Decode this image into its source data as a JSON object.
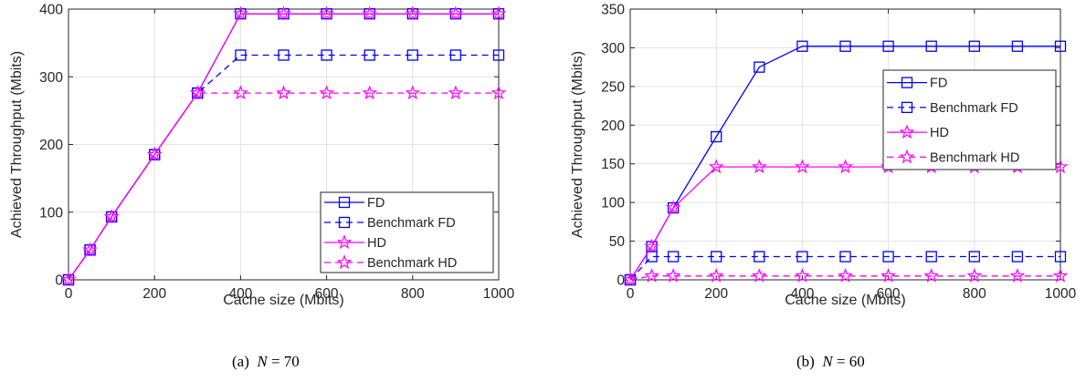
{
  "charts": [
    {
      "caption": {
        "prefix": "(a)",
        "var": "N",
        "rest": " = 70"
      },
      "chart_data": {
        "type": "line",
        "xlabel": "Cache size (Mbits)",
        "ylabel": "Achieved Throughput (Mbits)",
        "xlim": [
          0,
          1000
        ],
        "ylim": [
          0,
          400
        ],
        "xticks": [
          0,
          200,
          400,
          600,
          800,
          1000
        ],
        "yticks": [
          0,
          100,
          200,
          300,
          400
        ],
        "grid": true,
        "legend_position": "bottom-right",
        "series": [
          {
            "name": "FD",
            "color": "#0000ff",
            "marker": "square",
            "dashed": false,
            "x": [
              0,
              50,
              100,
              200,
              300,
              400,
              500,
              600,
              700,
              800,
              900,
              1000
            ],
            "y": [
              0,
              44,
              93,
              185,
              276,
              393,
              393,
              393,
              393,
              393,
              393,
              393
            ]
          },
          {
            "name": "Benchmark FD",
            "color": "#0000ff",
            "marker": "square",
            "dashed": true,
            "x": [
              0,
              50,
              100,
              200,
              300,
              400,
              500,
              600,
              700,
              800,
              900,
              1000
            ],
            "y": [
              0,
              44,
              93,
              185,
              276,
              332,
              332,
              332,
              332,
              332,
              332,
              332
            ]
          },
          {
            "name": "HD",
            "color": "#ff00ff",
            "marker": "star",
            "dashed": false,
            "x": [
              0,
              50,
              100,
              200,
              300,
              400,
              500,
              600,
              700,
              800,
              900,
              1000
            ],
            "y": [
              0,
              44,
              93,
              185,
              276,
              393,
              393,
              393,
              393,
              393,
              393,
              393
            ]
          },
          {
            "name": "Benchmark HD",
            "color": "#ff00ff",
            "marker": "star",
            "dashed": true,
            "x": [
              0,
              50,
              100,
              200,
              300,
              400,
              500,
              600,
              700,
              800,
              900,
              1000
            ],
            "y": [
              0,
              44,
              93,
              185,
              276,
              276,
              276,
              276,
              276,
              276,
              276,
              276
            ]
          }
        ]
      }
    },
    {
      "caption": {
        "prefix": "(b)",
        "var": "N",
        "rest": " = 60"
      },
      "chart_data": {
        "type": "line",
        "xlabel": "Cache size (Mbits)",
        "ylabel": "Achieved Throughput (Mbits)",
        "xlim": [
          0,
          1000
        ],
        "ylim": [
          0,
          350
        ],
        "xticks": [
          0,
          200,
          400,
          600,
          800,
          1000
        ],
        "yticks": [
          0,
          50,
          100,
          150,
          200,
          250,
          300,
          350
        ],
        "grid": true,
        "legend_position": "top-right",
        "series": [
          {
            "name": "FD",
            "color": "#0000ff",
            "marker": "square",
            "dashed": false,
            "x": [
              0,
              50,
              100,
              200,
              300,
              400,
              500,
              600,
              700,
              800,
              900,
              1000
            ],
            "y": [
              0,
              43,
              93,
              185,
              275,
              302,
              302,
              302,
              302,
              302,
              302,
              302
            ]
          },
          {
            "name": "Benchmark FD",
            "color": "#0000ff",
            "marker": "square",
            "dashed": true,
            "x": [
              0,
              50,
              100,
              200,
              300,
              400,
              500,
              600,
              700,
              800,
              900,
              1000
            ],
            "y": [
              0,
              30,
              30,
              30,
              30,
              30,
              30,
              30,
              30,
              30,
              30,
              30
            ]
          },
          {
            "name": "HD",
            "color": "#ff00ff",
            "marker": "star",
            "dashed": false,
            "x": [
              0,
              50,
              100,
              200,
              300,
              400,
              500,
              600,
              700,
              800,
              900,
              1000
            ],
            "y": [
              0,
              43,
              93,
              146,
              146,
              146,
              146,
              146,
              146,
              146,
              146,
              146
            ]
          },
          {
            "name": "Benchmark HD",
            "color": "#ff00ff",
            "marker": "star",
            "dashed": true,
            "x": [
              0,
              50,
              100,
              200,
              300,
              400,
              500,
              600,
              700,
              800,
              900,
              1000
            ],
            "y": [
              0,
              5,
              5,
              5,
              5,
              5,
              5,
              5,
              5,
              5,
              5,
              5
            ]
          }
        ]
      }
    }
  ]
}
